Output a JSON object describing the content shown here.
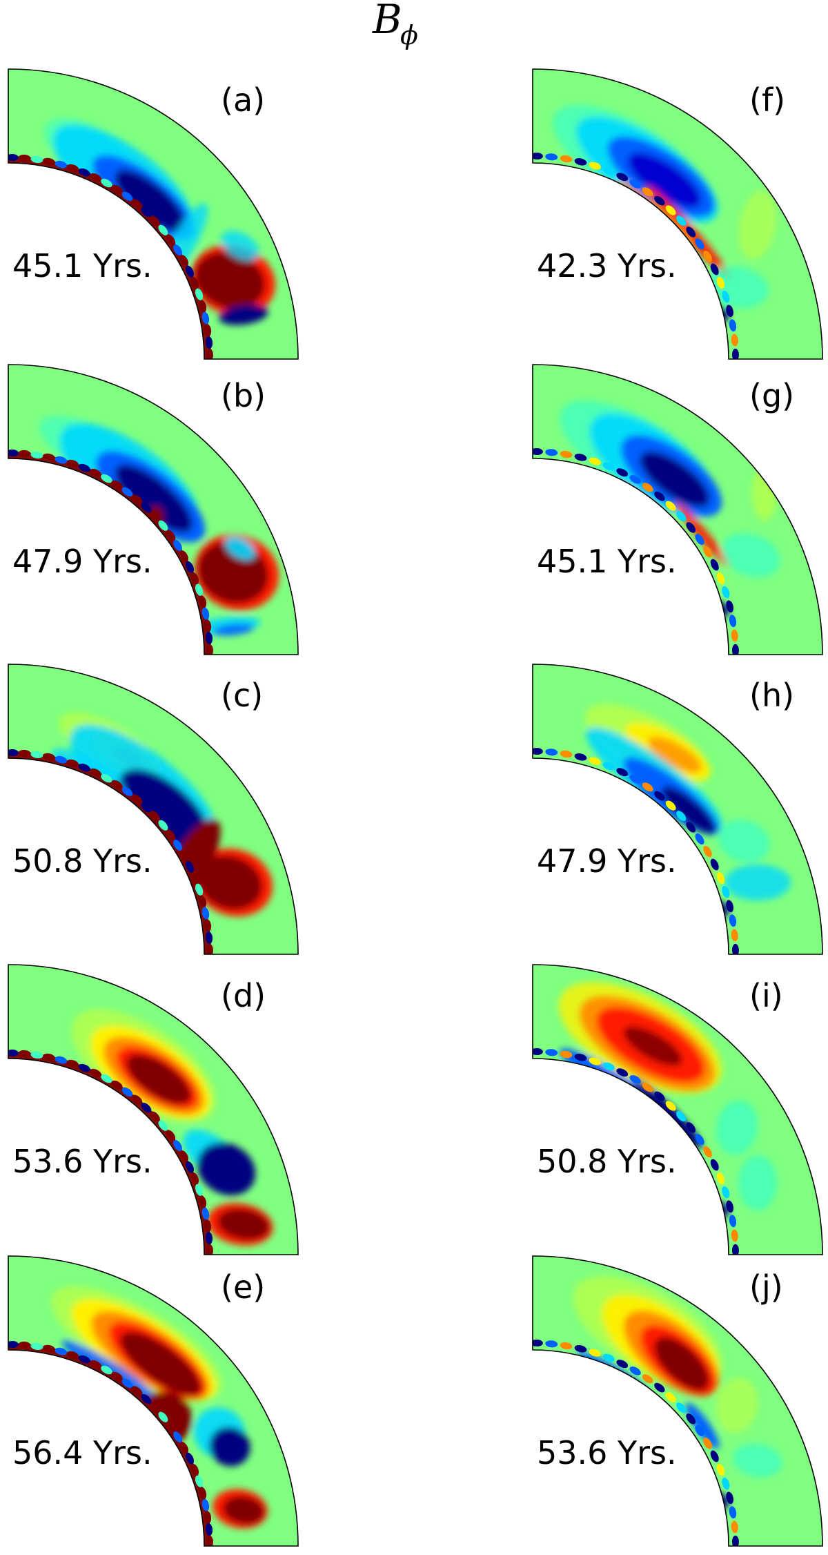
{
  "figure": {
    "title_main": "B",
    "title_sub": "ϕ",
    "left_column": [
      {
        "letter": "(a)",
        "time": "45.1 Yrs."
      },
      {
        "letter": "(b)",
        "time": "47.9 Yrs."
      },
      {
        "letter": "(c)",
        "time": "50.8 Yrs."
      },
      {
        "letter": "(d)",
        "time": "53.6 Yrs."
      },
      {
        "letter": "(e)",
        "time": "56.4 Yrs."
      }
    ],
    "right_column": [
      {
        "letter": "(f)",
        "time": "42.3 Yrs."
      },
      {
        "letter": "(g)",
        "time": "45.1 Yrs."
      },
      {
        "letter": "(h)",
        "time": "47.9 Yrs."
      },
      {
        "letter": "(i)",
        "time": "50.8 Yrs."
      },
      {
        "letter": "(j)",
        "time": "53.6 Yrs."
      }
    ]
  },
  "colors": {
    "dark_red": "#7f0000",
    "red": "#ff1a00",
    "orange": "#ff8c00",
    "yellow": "#fff000",
    "light_green": "#b8ff48",
    "background_green": "#80ff80",
    "aqua": "#40ffc0",
    "cyan": "#00d8ff",
    "blue": "#0060ff",
    "deep_blue": "#0000d0",
    "navy": "#000080",
    "outline": "#000000"
  }
}
